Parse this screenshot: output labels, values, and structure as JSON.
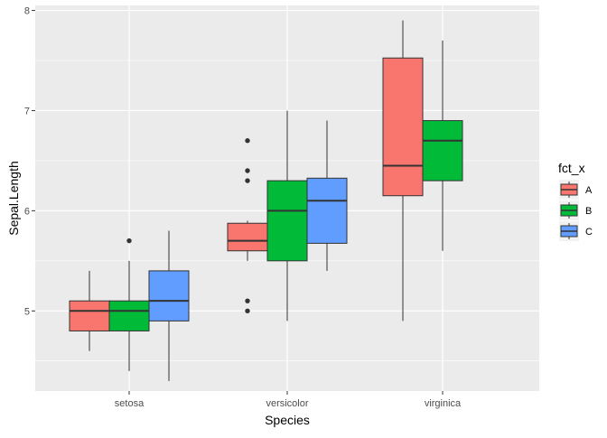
{
  "chart_data": {
    "type": "boxplot",
    "xlabel": "Species",
    "ylabel": "Sepal.Length",
    "categories": [
      "setosa",
      "versicolor",
      "virginica"
    ],
    "ylim": [
      4.2,
      8.05
    ],
    "y_ticks": [
      5,
      6,
      7,
      8
    ],
    "grid": true,
    "legend": {
      "title": "fct_x",
      "position": "right",
      "entries": [
        "A",
        "B",
        "C"
      ]
    },
    "colors": {
      "A": "#F8766D",
      "B": "#00BA38",
      "C": "#619CFF",
      "panel": "#EBEBEB",
      "grid": "#FFFFFF"
    },
    "series": [
      {
        "name": "A",
        "boxes": [
          {
            "category": "setosa",
            "min": 4.6,
            "q1": 4.8,
            "median": 5.0,
            "q3": 5.1,
            "max": 5.4,
            "outliers": []
          },
          {
            "category": "versicolor",
            "min": 5.5,
            "q1": 5.6,
            "median": 5.7,
            "q3": 5.875,
            "max": 5.9,
            "outliers": [
              6.7,
              6.4,
              6.3,
              5.1,
              5.0
            ]
          },
          {
            "category": "virginica",
            "min": 4.9,
            "q1": 6.15,
            "median": 6.45,
            "q3": 7.525,
            "max": 7.9,
            "outliers": []
          }
        ]
      },
      {
        "name": "B",
        "boxes": [
          {
            "category": "setosa",
            "min": 4.4,
            "q1": 4.8,
            "median": 5.0,
            "q3": 5.1,
            "max": 5.5,
            "outliers": [
              5.7
            ]
          },
          {
            "category": "versicolor",
            "min": 4.9,
            "q1": 5.5,
            "median": 6.0,
            "q3": 6.3,
            "max": 7.0,
            "outliers": []
          },
          {
            "category": "virginica",
            "min": 5.6,
            "q1": 6.3,
            "median": 6.7,
            "q3": 6.9,
            "max": 7.7,
            "outliers": []
          }
        ]
      },
      {
        "name": "C",
        "boxes": [
          {
            "category": "setosa",
            "min": 4.3,
            "q1": 4.9,
            "median": 5.1,
            "q3": 5.4,
            "max": 5.8,
            "outliers": []
          },
          {
            "category": "versicolor",
            "min": 5.4,
            "q1": 5.675,
            "median": 6.1,
            "q3": 6.325,
            "max": 6.9,
            "outliers": []
          }
        ]
      }
    ]
  }
}
